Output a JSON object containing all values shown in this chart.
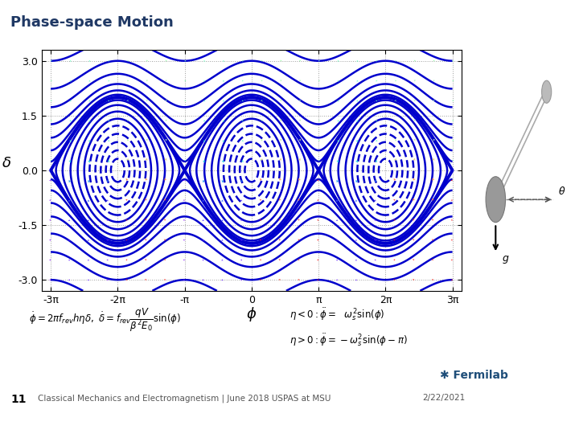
{
  "title": "Phase-space Motion",
  "title_color": "#1f3864",
  "title_fontsize": 13,
  "xlabel": "ϕ",
  "ylabel": "δ",
  "xlim": [
    -9.85,
    9.85
  ],
  "ylim": [
    -3.3,
    3.3
  ],
  "yticks": [
    -3.0,
    -1.5,
    0.0,
    1.5,
    3.0
  ],
  "ytick_labels": [
    "-3.0",
    "-1.5",
    "0.0",
    "1.5",
    "3.0"
  ],
  "xtick_labels": [
    "-3π",
    "-2π",
    "-π",
    "0",
    "π",
    "2π",
    "3π"
  ],
  "xtick_vals": [
    -9.42478,
    -6.28319,
    -3.14159,
    0,
    3.14159,
    6.28319,
    9.42478
  ],
  "line_color": "#0000cc",
  "background_color": "#ffffff",
  "footer_text": "Classical Mechanics and Electromagnetism | June 2018 USPAS at MSU",
  "slide_number": "11",
  "date_text": "2/22/2021",
  "formula_left": "$\\dot{\\phi} = 2\\pi f_{rev} h\\eta\\delta,\\ \\dot{\\delta} = f_{rev}\\dfrac{qV}{\\beta^2 E_0}\\sin(\\phi)$",
  "formula_right_1": "$\\eta < 0 : \\ddot{\\phi} =\\ \\ \\omega_s^2\\sin(\\phi)$",
  "formula_right_2": "$\\eta > 0 : \\ddot{\\phi} = -\\omega_s^2\\sin(\\phi-\\pi)$",
  "header_line_color": "#9dc3e6",
  "footer_line_color": "#9dc3e6",
  "levels_trapped": [
    -0.95,
    -0.85,
    -0.7,
    -0.5,
    -0.25,
    0.0,
    0.3,
    0.6,
    0.85,
    0.97
  ],
  "levels_passing": [
    1.03,
    1.15,
    1.4,
    1.8,
    2.5,
    3.5,
    5.5
  ],
  "separatrix_level": 1.0
}
